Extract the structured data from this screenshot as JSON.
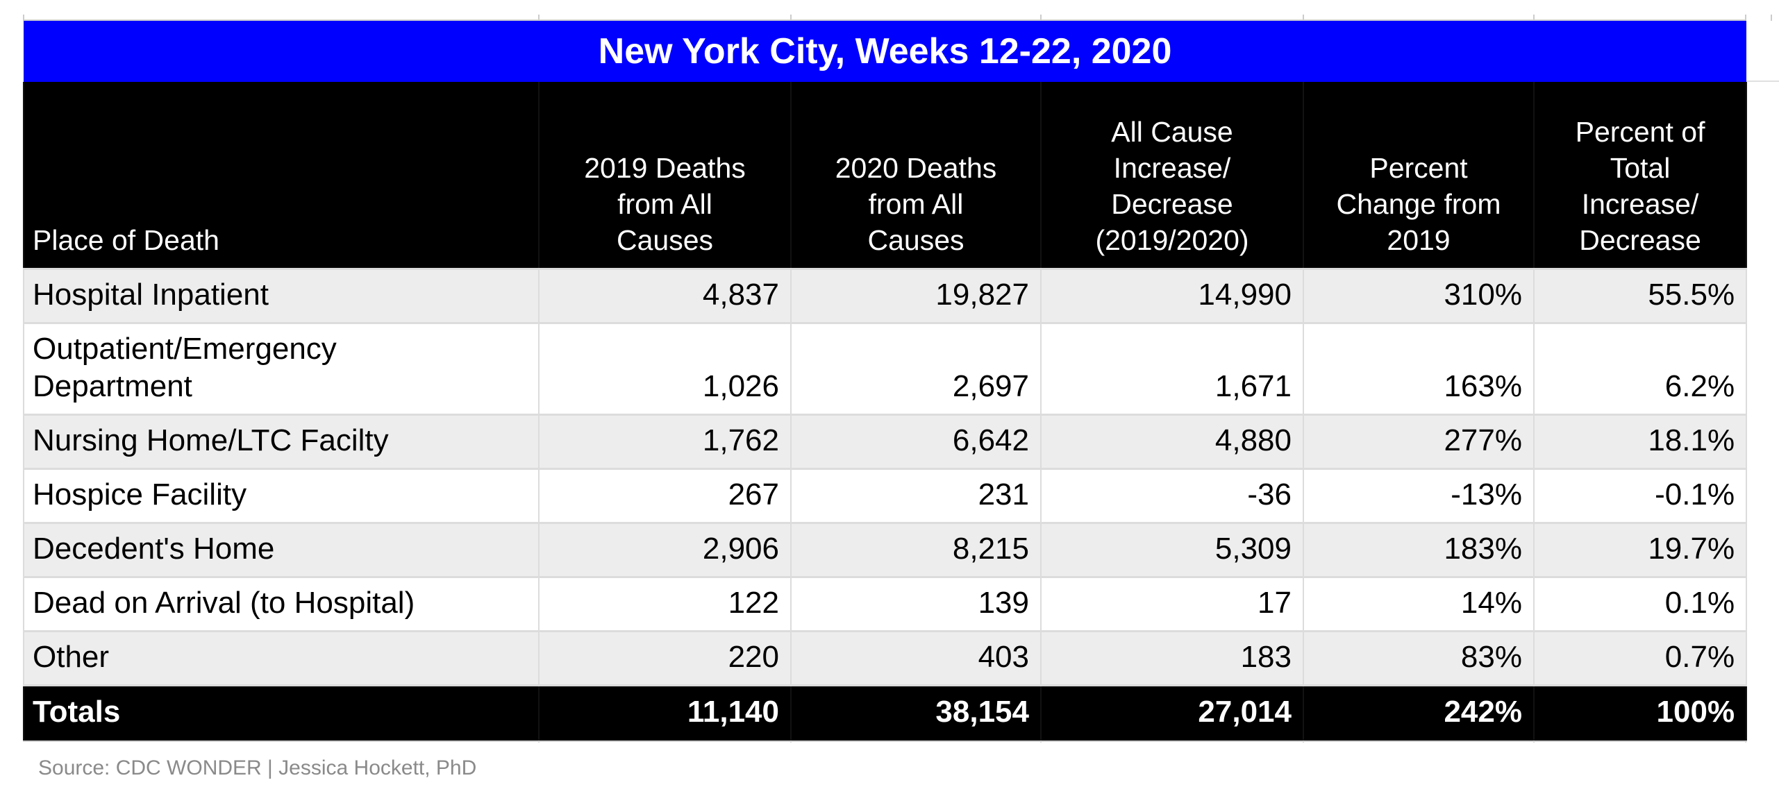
{
  "chart_data": {
    "type": "table",
    "title": "New York City, Weeks 12-22, 2020",
    "columns": [
      "Place of Death",
      "2019 Deaths from All Causes",
      "2020 Deaths from All Causes",
      "All Cause Increase/Decrease (2019/2020)",
      "Percent Change from 2019",
      "Percent of Total Increase/Decrease"
    ],
    "rows": [
      [
        "Hospital Inpatient",
        "4,837",
        "19,827",
        "14,990",
        "310%",
        "55.5%"
      ],
      [
        "Outpatient/Emergency Department",
        "1,026",
        "2,697",
        "1,671",
        "163%",
        "6.2%"
      ],
      [
        "Nursing Home/LTC Facilty",
        "1,762",
        "6,642",
        "4,880",
        "277%",
        "18.1%"
      ],
      [
        "Hospice Facility",
        "267",
        "231",
        "-36",
        "-13%",
        "-0.1%"
      ],
      [
        "Decedent's Home",
        "2,906",
        "8,215",
        "5,309",
        "183%",
        "19.7%"
      ],
      [
        "Dead on Arrival (to Hospital)",
        "122",
        "139",
        "17",
        "14%",
        "0.1%"
      ],
      [
        "Other",
        "220",
        "403",
        "183",
        "83%",
        "0.7%"
      ]
    ],
    "totals_row": [
      "Totals",
      "11,140",
      "38,154",
      "27,014",
      "242%",
      "100%"
    ],
    "source": "Source: CDC WONDER | Jessica Hockett, PhD"
  },
  "header_lines": [
    [
      "Place of Death"
    ],
    [
      "2019 Deaths",
      "from All",
      "Causes"
    ],
    [
      "2020 Deaths",
      "from All",
      "Causes"
    ],
    [
      "All Cause",
      "Increase/",
      "Decrease",
      "(2019/2020)"
    ],
    [
      "Percent",
      "Change from",
      "2019"
    ],
    [
      "Percent of",
      "Total",
      "Increase/",
      "Decrease"
    ]
  ],
  "colors": {
    "title_bg": "#0000ff",
    "title_text": "#ffffff",
    "header_bg": "#000000",
    "header_text": "#ffffff",
    "stripe_bg": "#ededed",
    "grid_line": "#dcdcdc",
    "totals_bg": "#000000",
    "source_text": "#8a8a8a"
  }
}
